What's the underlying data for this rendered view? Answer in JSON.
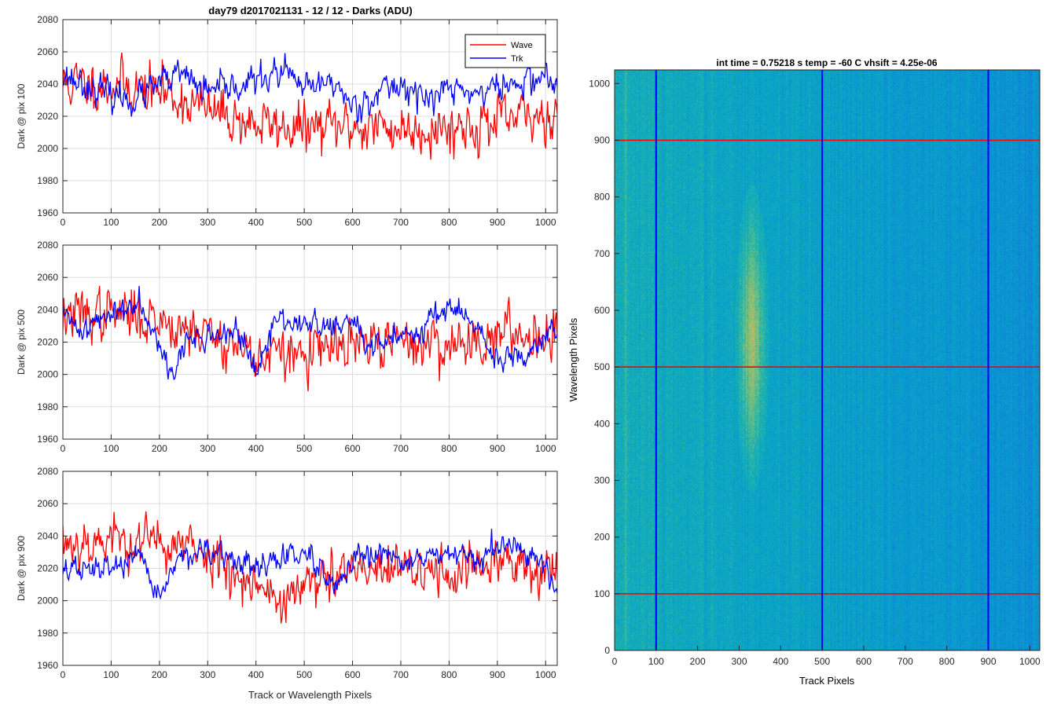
{
  "figure": {
    "title": "day79 d2017021131 - 12 / 12 - Darks (ADU)"
  },
  "chart_data": [
    {
      "type": "line",
      "id": "panel-pix-100",
      "title": "day79 d2017021131 - 12 / 12 - Darks (ADU)",
      "xlabel": "",
      "ylabel": "Dark @ pix 100",
      "xlim": [
        0,
        1024
      ],
      "ylim": [
        1960,
        2080
      ],
      "xticks": [
        0,
        100,
        200,
        300,
        400,
        500,
        600,
        700,
        800,
        900,
        1000
      ],
      "yticks": [
        1960,
        1980,
        2000,
        2020,
        2040,
        2060,
        2080
      ],
      "grid": true,
      "legend": "top-right",
      "series": [
        {
          "name": "Wave",
          "color": "#ff0000",
          "anchors": [
            [
              0,
              2040
            ],
            [
              100,
              2040
            ],
            [
              200,
              2036
            ],
            [
              300,
              2024
            ],
            [
              400,
              2015
            ],
            [
              500,
              2012
            ],
            [
              600,
              2014
            ],
            [
              700,
              2012
            ],
            [
              800,
              2013
            ],
            [
              900,
              2016
            ],
            [
              1024,
              2022
            ]
          ],
          "noise": 10,
          "seed": 11
        },
        {
          "name": "Trk",
          "color": "#0000ff",
          "anchors": [
            [
              0,
              2046
            ],
            [
              60,
              2038
            ],
            [
              100,
              2033
            ],
            [
              150,
              2030
            ],
            [
              200,
              2040
            ],
            [
              250,
              2046
            ],
            [
              300,
              2034
            ],
            [
              400,
              2042
            ],
            [
              460,
              2048
            ],
            [
              500,
              2036
            ],
            [
              560,
              2042
            ],
            [
              600,
              2026
            ],
            [
              650,
              2034
            ],
            [
              700,
              2040
            ],
            [
              760,
              2030
            ],
            [
              800,
              2038
            ],
            [
              850,
              2034
            ],
            [
              900,
              2038
            ],
            [
              950,
              2040
            ],
            [
              1000,
              2046
            ],
            [
              1024,
              2036
            ]
          ],
          "noise": 6,
          "seed": 23
        }
      ]
    },
    {
      "type": "line",
      "id": "panel-pix-500",
      "title": "",
      "xlabel": "",
      "ylabel": "Dark @ pix 500",
      "xlim": [
        0,
        1024
      ],
      "ylim": [
        1960,
        2080
      ],
      "xticks": [
        0,
        100,
        200,
        300,
        400,
        500,
        600,
        700,
        800,
        900,
        1000
      ],
      "yticks": [
        1960,
        1980,
        2000,
        2020,
        2040,
        2060,
        2080
      ],
      "grid": true,
      "legend": "none",
      "series": [
        {
          "name": "Wave",
          "color": "#ff0000",
          "anchors": [
            [
              0,
              2036
            ],
            [
              100,
              2038
            ],
            [
              200,
              2034
            ],
            [
              300,
              2026
            ],
            [
              400,
              2012
            ],
            [
              500,
              2012
            ],
            [
              600,
              2018
            ],
            [
              700,
              2020
            ],
            [
              800,
              2018
            ],
            [
              900,
              2024
            ],
            [
              1024,
              2026
            ]
          ],
          "noise": 10,
          "seed": 37
        },
        {
          "name": "Trk",
          "color": "#0000ff",
          "anchors": [
            [
              0,
              2036
            ],
            [
              40,
              2028
            ],
            [
              80,
              2034
            ],
            [
              120,
              2040
            ],
            [
              160,
              2046
            ],
            [
              200,
              2022
            ],
            [
              220,
              2000
            ],
            [
              260,
              2020
            ],
            [
              300,
              2024
            ],
            [
              340,
              2024
            ],
            [
              360,
              2030
            ],
            [
              400,
              1998
            ],
            [
              440,
              2034
            ],
            [
              500,
              2032
            ],
            [
              560,
              2028
            ],
            [
              600,
              2034
            ],
            [
              640,
              2014
            ],
            [
              700,
              2026
            ],
            [
              740,
              2028
            ],
            [
              800,
              2044
            ],
            [
              850,
              2030
            ],
            [
              900,
              2008
            ],
            [
              950,
              2010
            ],
            [
              1000,
              2028
            ],
            [
              1024,
              2028
            ]
          ],
          "noise": 5,
          "seed": 41
        }
      ]
    },
    {
      "type": "line",
      "id": "panel-pix-900",
      "title": "",
      "xlabel": "Track or Wavelength Pixels",
      "ylabel": "Dark @ pix 900",
      "xlim": [
        0,
        1024
      ],
      "ylim": [
        1960,
        2080
      ],
      "xticks": [
        0,
        100,
        200,
        300,
        400,
        500,
        600,
        700,
        800,
        900,
        1000
      ],
      "yticks": [
        1960,
        1980,
        2000,
        2020,
        2040,
        2060,
        2080
      ],
      "grid": true,
      "legend": "none",
      "series": [
        {
          "name": "Wave",
          "color": "#ff0000",
          "anchors": [
            [
              0,
              2036
            ],
            [
              100,
              2038
            ],
            [
              200,
              2036
            ],
            [
              300,
              2030
            ],
            [
              400,
              2010
            ],
            [
              450,
              2000
            ],
            [
              500,
              2008
            ],
            [
              600,
              2018
            ],
            [
              700,
              2018
            ],
            [
              800,
              2018
            ],
            [
              900,
              2022
            ],
            [
              1024,
              2020
            ]
          ],
          "noise": 10,
          "seed": 53
        },
        {
          "name": "Trk",
          "color": "#0000ff",
          "anchors": [
            [
              0,
              2020
            ],
            [
              60,
              2018
            ],
            [
              100,
              2022
            ],
            [
              160,
              2024
            ],
            [
              200,
              2004
            ],
            [
              250,
              2030
            ],
            [
              300,
              2028
            ],
            [
              350,
              2026
            ],
            [
              400,
              2020
            ],
            [
              450,
              2026
            ],
            [
              500,
              2030
            ],
            [
              560,
              2006
            ],
            [
              600,
              2022
            ],
            [
              650,
              2028
            ],
            [
              700,
              2026
            ],
            [
              760,
              2026
            ],
            [
              800,
              2028
            ],
            [
              850,
              2024
            ],
            [
              900,
              2034
            ],
            [
              950,
              2030
            ],
            [
              1000,
              2024
            ],
            [
              1024,
              2006
            ]
          ],
          "noise": 5,
          "seed": 67
        }
      ]
    },
    {
      "type": "heatmap",
      "id": "dark-frame-image",
      "title": "int time = 0.75218 s   temp = -60 C   vhsift = 4.25e-06",
      "xlabel": "Track Pixels",
      "ylabel": "Wavelength Pixels",
      "xlim": [
        0,
        1024
      ],
      "ylim": [
        0,
        1024
      ],
      "xticks": [
        0,
        100,
        200,
        300,
        400,
        500,
        600,
        700,
        800,
        900,
        1000
      ],
      "yticks": [
        0,
        100,
        200,
        300,
        400,
        500,
        600,
        700,
        800,
        900,
        1000
      ],
      "colormap": "parula",
      "hot_region": {
        "x_range": [
          300,
          365
        ],
        "y_range": [
          330,
          760
        ],
        "peak": [
          330,
          550
        ]
      },
      "marker_lines": {
        "vertical_blue": [
          100,
          500,
          900
        ],
        "horizontal_red": [
          100,
          500,
          900
        ],
        "vertical_color": "#0000ff",
        "horizontal_color": "#ff0000"
      }
    }
  ]
}
